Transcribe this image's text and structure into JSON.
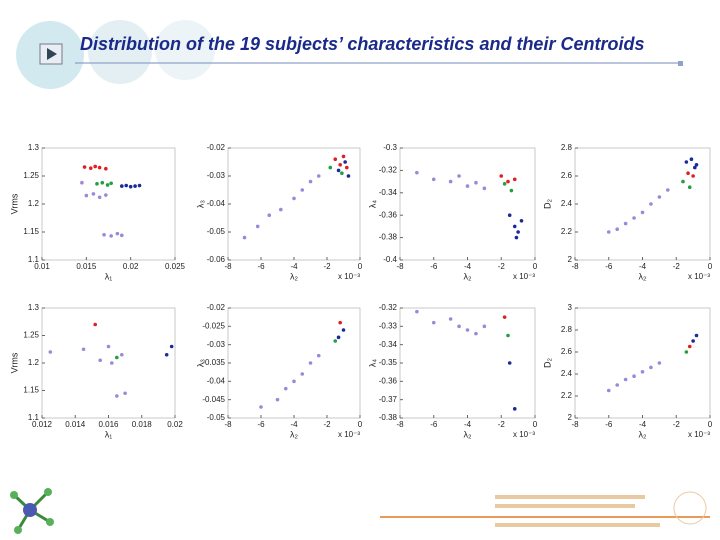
{
  "title": "Distribution of the 19 subjects’ characteristics and their Centroids",
  "chart_data": [
    {
      "type": "scatter",
      "xlabel": "λ₁",
      "ylabel": "Vrms",
      "xlim": [
        0.01,
        0.025
      ],
      "ylim": [
        1.1,
        1.3
      ],
      "xticks": [
        0.01,
        0.015,
        0.02,
        0.025
      ],
      "yticks": [
        1.1,
        1.15,
        1.2,
        1.25,
        1.3
      ],
      "series": [
        {
          "color": "#9a88d8",
          "x": [
            0.0145,
            0.015,
            0.0158,
            0.0165,
            0.0172,
            0.017,
            0.0178,
            0.0185,
            0.019
          ],
          "values": [
            1.238,
            1.215,
            1.218,
            1.212,
            1.216,
            1.145,
            1.143,
            1.147,
            1.144
          ]
        },
        {
          "color": "#e02020",
          "x": [
            0.0148,
            0.0155,
            0.016,
            0.0165,
            0.0172
          ],
          "values": [
            1.266,
            1.264,
            1.267,
            1.265,
            1.263
          ]
        },
        {
          "color": "#20a040",
          "x": [
            0.0162,
            0.0168,
            0.0174,
            0.0178
          ],
          "values": [
            1.236,
            1.238,
            1.234,
            1.237
          ]
        },
        {
          "color": "#1a2a9a",
          "x": [
            0.019,
            0.0195,
            0.02,
            0.0205,
            0.021
          ],
          "values": [
            1.232,
            1.233,
            1.231,
            1.232,
            1.233
          ]
        }
      ]
    },
    {
      "type": "scatter",
      "xlabel": "λ₂",
      "ylabel": "λ₃",
      "x_multiplier": "x 10⁻³",
      "xlim": [
        -8,
        0
      ],
      "ylim": [
        -0.06,
        -0.02
      ],
      "xticks": [
        -8,
        -6,
        -4,
        -2,
        0
      ],
      "yticks": [
        -0.06,
        -0.05,
        -0.04,
        -0.03,
        -0.02
      ],
      "series": [
        {
          "color": "#9a88d8",
          "x": [
            -7,
            -6.2,
            -5.5,
            -4.8,
            -4,
            -3.5,
            -3,
            -2.5
          ],
          "values": [
            -0.052,
            -0.048,
            -0.044,
            -0.042,
            -0.038,
            -0.035,
            -0.032,
            -0.03
          ]
        },
        {
          "color": "#e02020",
          "x": [
            -1.5,
            -1.2,
            -1,
            -0.8
          ],
          "values": [
            -0.024,
            -0.026,
            -0.023,
            -0.027
          ]
        },
        {
          "color": "#20a040",
          "x": [
            -1.8,
            -1.1
          ],
          "values": [
            -0.027,
            -0.029
          ]
        },
        {
          "color": "#1a2a9a",
          "x": [
            -1.3,
            -0.9,
            -0.7
          ],
          "values": [
            -0.028,
            -0.025,
            -0.03
          ]
        }
      ]
    },
    {
      "type": "scatter",
      "xlabel": "λ₂",
      "ylabel": "λ₄",
      "x_multiplier": "x 10⁻³",
      "xlim": [
        -8,
        0
      ],
      "ylim": [
        -0.4,
        -0.3
      ],
      "xticks": [
        -8,
        -6,
        -4,
        -2,
        0
      ],
      "yticks": [
        -0.4,
        -0.38,
        -0.36,
        -0.34,
        -0.32,
        -0.3
      ],
      "series": [
        {
          "color": "#9a88d8",
          "x": [
            -7,
            -6,
            -5,
            -4.5,
            -4,
            -3.5,
            -3
          ],
          "values": [
            -0.322,
            -0.328,
            -0.33,
            -0.325,
            -0.334,
            -0.331,
            -0.336
          ]
        },
        {
          "color": "#e02020",
          "x": [
            -2,
            -1.6,
            -1.2
          ],
          "values": [
            -0.325,
            -0.33,
            -0.328
          ]
        },
        {
          "color": "#20a040",
          "x": [
            -1.8,
            -1.4
          ],
          "values": [
            -0.332,
            -0.338
          ]
        },
        {
          "color": "#1a2a9a",
          "x": [
            -1.5,
            -1.2,
            -1,
            -0.8,
            -1.1
          ],
          "values": [
            -0.36,
            -0.37,
            -0.375,
            -0.365,
            -0.38
          ]
        }
      ]
    },
    {
      "type": "scatter",
      "xlabel": "λ₂",
      "ylabel": "D₂",
      "x_multiplier": "x 10⁻³",
      "xlim": [
        -8,
        0
      ],
      "ylim": [
        2,
        2.8
      ],
      "xticks": [
        -8,
        -6,
        -4,
        -2,
        0
      ],
      "yticks": [
        2,
        2.2,
        2.4,
        2.6,
        2.8
      ],
      "series": [
        {
          "color": "#9a88d8",
          "x": [
            -6,
            -5.5,
            -5,
            -4.5,
            -4,
            -3.5,
            -3,
            -2.5
          ],
          "values": [
            2.2,
            2.22,
            2.26,
            2.3,
            2.34,
            2.4,
            2.45,
            2.5
          ]
        },
        {
          "color": "#e02020",
          "x": [
            -1.3,
            -1
          ],
          "values": [
            2.62,
            2.6
          ]
        },
        {
          "color": "#20a040",
          "x": [
            -1.6,
            -1.2
          ],
          "values": [
            2.56,
            2.52
          ]
        },
        {
          "color": "#1a2a9a",
          "x": [
            -1.4,
            -1.1,
            -0.9,
            -0.8
          ],
          "values": [
            2.7,
            2.72,
            2.66,
            2.68
          ]
        }
      ]
    },
    {
      "type": "scatter",
      "xlabel": "λ₁",
      "ylabel": "Vrms",
      "xlim": [
        0.012,
        0.02
      ],
      "ylim": [
        1.1,
        1.3
      ],
      "xticks": [
        0.012,
        0.014,
        0.016,
        0.018,
        0.02
      ],
      "yticks": [
        1.1,
        1.15,
        1.2,
        1.25,
        1.3
      ],
      "series": [
        {
          "color": "#9a88d8",
          "x": [
            0.0125,
            0.0145,
            0.0155,
            0.016,
            0.0162,
            0.0168,
            0.0165,
            0.017
          ],
          "values": [
            1.22,
            1.225,
            1.205,
            1.23,
            1.2,
            1.215,
            1.14,
            1.145
          ]
        },
        {
          "color": "#e02020",
          "x": [
            0.0152
          ],
          "values": [
            1.27
          ]
        },
        {
          "color": "#20a040",
          "x": [
            0.0165
          ],
          "values": [
            1.21
          ]
        },
        {
          "color": "#1a2a9a",
          "x": [
            0.0198,
            0.0195
          ],
          "values": [
            1.23,
            1.215
          ]
        }
      ]
    },
    {
      "type": "scatter",
      "xlabel": "λ₂",
      "ylabel": "λ₃",
      "x_multiplier": "x 10⁻³",
      "xlim": [
        -8,
        0
      ],
      "ylim": [
        -0.05,
        -0.02
      ],
      "xticks": [
        -8,
        -6,
        -4,
        -2,
        0
      ],
      "yticks": [
        -0.05,
        -0.045,
        -0.04,
        -0.035,
        -0.03,
        -0.025,
        -0.02
      ],
      "series": [
        {
          "color": "#9a88d8",
          "x": [
            -6,
            -5,
            -4.5,
            -4,
            -3.5,
            -3,
            -2.5
          ],
          "values": [
            -0.047,
            -0.045,
            -0.042,
            -0.04,
            -0.038,
            -0.035,
            -0.033
          ]
        },
        {
          "color": "#e02020",
          "x": [
            -1.2
          ],
          "values": [
            -0.024
          ]
        },
        {
          "color": "#20a040",
          "x": [
            -1.5
          ],
          "values": [
            -0.029
          ]
        },
        {
          "color": "#1a2a9a",
          "x": [
            -1,
            -1.3
          ],
          "values": [
            -0.026,
            -0.028
          ]
        }
      ]
    },
    {
      "type": "scatter",
      "xlabel": "λ₂",
      "ylabel": "λ₄",
      "x_multiplier": "x 10⁻³",
      "xlim": [
        -8,
        0
      ],
      "ylim": [
        -0.38,
        -0.32
      ],
      "xticks": [
        -8,
        -6,
        -4,
        -2,
        0
      ],
      "yticks": [
        -0.38,
        -0.37,
        -0.36,
        -0.35,
        -0.34,
        -0.33,
        -0.32
      ],
      "series": [
        {
          "color": "#9a88d8",
          "x": [
            -7,
            -6,
            -5,
            -4.5,
            -4,
            -3.5,
            -3
          ],
          "values": [
            -0.322,
            -0.328,
            -0.326,
            -0.33,
            -0.332,
            -0.334,
            -0.33
          ]
        },
        {
          "color": "#e02020",
          "x": [
            -1.8
          ],
          "values": [
            -0.325
          ]
        },
        {
          "color": "#20a040",
          "x": [
            -1.6
          ],
          "values": [
            -0.335
          ]
        },
        {
          "color": "#1a2a9a",
          "x": [
            -1.5,
            -1.2
          ],
          "values": [
            -0.35,
            -0.375
          ]
        }
      ]
    },
    {
      "type": "scatter",
      "xlabel": "λ₂",
      "ylabel": "D₂",
      "x_multiplier": "x 10⁻³",
      "xlim": [
        -8,
        0
      ],
      "ylim": [
        2,
        3
      ],
      "xticks": [
        -8,
        -6,
        -4,
        -2,
        0
      ],
      "yticks": [
        2,
        2.2,
        2.4,
        2.6,
        2.8,
        3
      ],
      "series": [
        {
          "color": "#9a88d8",
          "x": [
            -6,
            -5.5,
            -5,
            -4.5,
            -4,
            -3.5,
            -3
          ],
          "values": [
            2.25,
            2.3,
            2.35,
            2.38,
            2.42,
            2.46,
            2.5
          ]
        },
        {
          "color": "#e02020",
          "x": [
            -1.2
          ],
          "values": [
            2.65
          ]
        },
        {
          "color": "#20a040",
          "x": [
            -1.4
          ],
          "values": [
            2.6
          ]
        },
        {
          "color": "#1a2a9a",
          "x": [
            -1,
            -0.8
          ],
          "values": [
            2.7,
            2.75
          ]
        }
      ]
    }
  ]
}
